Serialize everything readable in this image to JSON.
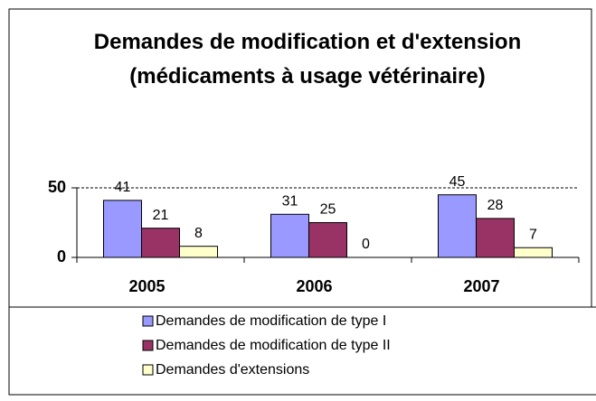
{
  "chart_data": {
    "type": "bar",
    "title": "Demandes de modification et d'extension (médicaments à usage vétérinaire)",
    "categories": [
      "2005",
      "2006",
      "2007"
    ],
    "series": [
      {
        "name": "Demandes de modification de type I",
        "color": "#9999ff",
        "values": [
          41,
          31,
          45
        ]
      },
      {
        "name": "Demandes de modification de type II",
        "color": "#993366",
        "values": [
          21,
          25,
          28
        ]
      },
      {
        "name": "Demandes d'extensions",
        "color": "#ffffcc",
        "values": [
          8,
          0,
          7
        ]
      }
    ],
    "ylim": [
      0,
      50
    ],
    "yticks": [
      0,
      50
    ],
    "grid": true
  }
}
